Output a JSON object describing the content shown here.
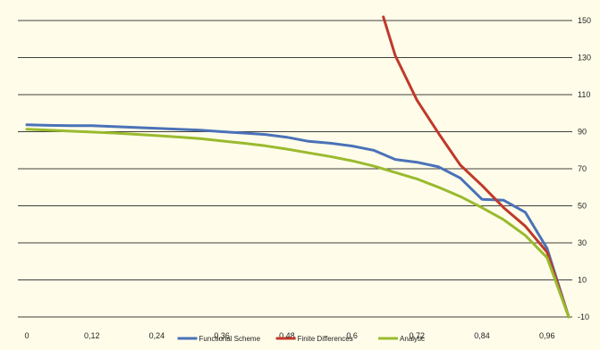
{
  "chart_data": {
    "type": "line",
    "title": "",
    "xlabel": "",
    "ylabel": "",
    "x_ticks": [
      "0",
      "0,12",
      "0,24",
      "0,36",
      "0,48",
      "0,6",
      "0,72",
      "0,84",
      "0,96"
    ],
    "x_tick_values": [
      0,
      0.12,
      0.24,
      0.36,
      0.48,
      0.6,
      0.72,
      0.84,
      0.96
    ],
    "y_ticks": [
      "-10",
      "10",
      "30",
      "50",
      "70",
      "90",
      "110",
      "130",
      "150"
    ],
    "y_tick_values": [
      -10,
      10,
      30,
      50,
      70,
      90,
      110,
      130,
      150
    ],
    "xlim": [
      0,
      1
    ],
    "ylim": [
      -10,
      150
    ],
    "y_axis_position": "right",
    "grid": "horizontal",
    "legend": "bottom",
    "colors": {
      "background": "#fffde9",
      "grid": "#000000",
      "functional_scheme": "#4a72b8",
      "finite_differences": "#c0392b",
      "analytic": "#9aba2e"
    },
    "series": [
      {
        "name": "Functional Scheme",
        "color": "#4a72b8",
        "points": [
          [
            0.0,
            93.7
          ],
          [
            0.04,
            93.4
          ],
          [
            0.08,
            93.3
          ],
          [
            0.12,
            93.3
          ],
          [
            0.16,
            92.8
          ],
          [
            0.2,
            92.3
          ],
          [
            0.24,
            91.8
          ],
          [
            0.28,
            91.3
          ],
          [
            0.32,
            90.8
          ],
          [
            0.36,
            90.0
          ],
          [
            0.4,
            89.3
          ],
          [
            0.44,
            88.5
          ],
          [
            0.48,
            87.0
          ],
          [
            0.52,
            84.8
          ],
          [
            0.56,
            83.8
          ],
          [
            0.6,
            82.3
          ],
          [
            0.64,
            80.0
          ],
          [
            0.68,
            75.0
          ],
          [
            0.72,
            73.5
          ],
          [
            0.76,
            71.0
          ],
          [
            0.8,
            65.0
          ],
          [
            0.84,
            53.5
          ],
          [
            0.88,
            53.0
          ],
          [
            0.92,
            46.5
          ],
          [
            0.96,
            27.0
          ],
          [
            1.0,
            -10.0
          ]
        ]
      },
      {
        "name": "Finite Differences",
        "color": "#c0392b",
        "points": [
          [
            0.658,
            152.0
          ],
          [
            0.68,
            131.0
          ],
          [
            0.72,
            107.0
          ],
          [
            0.76,
            89.0
          ],
          [
            0.8,
            72.0
          ],
          [
            0.84,
            61.0
          ],
          [
            0.88,
            49.0
          ],
          [
            0.92,
            39.0
          ],
          [
            0.96,
            25.0
          ],
          [
            1.0,
            -10.0
          ]
        ]
      },
      {
        "name": "Analytic",
        "color": "#9aba2e",
        "points": [
          [
            0.0,
            91.3
          ],
          [
            0.04,
            90.8
          ],
          [
            0.08,
            90.3
          ],
          [
            0.12,
            89.8
          ],
          [
            0.16,
            89.3
          ],
          [
            0.2,
            88.6
          ],
          [
            0.24,
            87.9
          ],
          [
            0.28,
            87.1
          ],
          [
            0.32,
            86.3
          ],
          [
            0.36,
            85.0
          ],
          [
            0.4,
            83.8
          ],
          [
            0.44,
            82.4
          ],
          [
            0.48,
            80.6
          ],
          [
            0.52,
            78.6
          ],
          [
            0.56,
            76.6
          ],
          [
            0.6,
            74.3
          ],
          [
            0.64,
            71.5
          ],
          [
            0.68,
            68.0
          ],
          [
            0.72,
            64.5
          ],
          [
            0.76,
            60.0
          ],
          [
            0.8,
            55.0
          ],
          [
            0.84,
            49.0
          ],
          [
            0.88,
            42.5
          ],
          [
            0.92,
            34.0
          ],
          [
            0.96,
            22.0
          ],
          [
            1.0,
            -10.0
          ]
        ]
      }
    ]
  }
}
